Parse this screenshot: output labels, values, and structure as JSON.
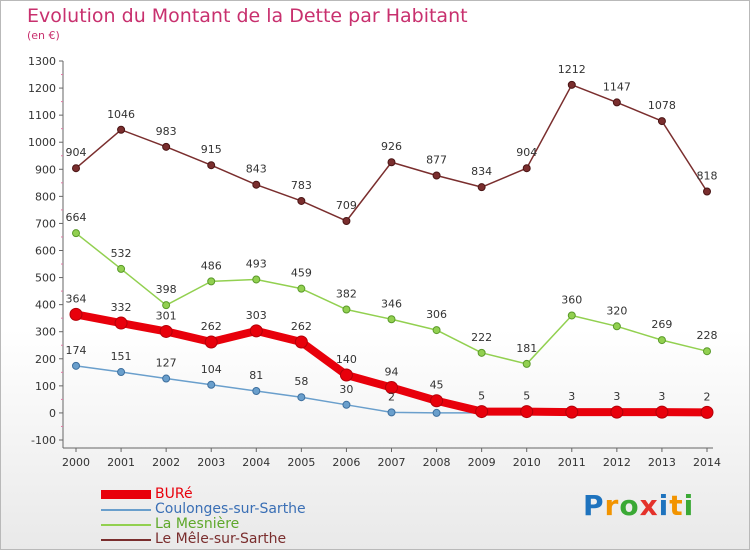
{
  "title": "Evolution du Montant de la Dette par Habitant",
  "subtitle": "(en €)",
  "logo": {
    "letters": [
      "P",
      "r",
      "o",
      "x",
      "i",
      "t",
      "i"
    ],
    "colors": [
      "#1e73be",
      "#f29400",
      "#3aa935",
      "#e4322b",
      "#1e73be",
      "#f29400",
      "#3aa935"
    ]
  },
  "chart_data": {
    "type": "line",
    "x": [
      "2000",
      "2001",
      "2002",
      "2003",
      "2004",
      "2005",
      "2006",
      "2007",
      "2008",
      "2009",
      "2010",
      "2011",
      "2012",
      "2013",
      "2014"
    ],
    "ylim": [
      -100,
      1300
    ],
    "yticks": [
      -100,
      0,
      100,
      200,
      300,
      400,
      500,
      600,
      700,
      800,
      900,
      1000,
      1100,
      1200,
      1300
    ],
    "grid": false,
    "legend_position": "bottom-left",
    "series": [
      {
        "name": "BURé",
        "color": "#e8000b",
        "values": [
          364,
          332,
          301,
          262,
          303,
          262,
          140,
          94,
          45,
          5,
          5,
          3,
          3,
          3,
          2
        ]
      },
      {
        "name": "Coulonges-sur-Sarthe",
        "color": "#6a9fcc",
        "values": [
          174,
          151,
          127,
          104,
          81,
          58,
          30,
          2,
          0,
          0,
          0,
          0,
          0,
          0,
          0
        ]
      },
      {
        "name": "La Mesnière",
        "color": "#92d050",
        "values": [
          664,
          532,
          398,
          486,
          493,
          459,
          382,
          346,
          306,
          222,
          181,
          360,
          320,
          269,
          228
        ]
      },
      {
        "name": "Le Mêle-sur-Sarthe",
        "color": "#7a2e2e",
        "values": [
          904,
          1046,
          983,
          915,
          843,
          783,
          709,
          926,
          877,
          834,
          904,
          1212,
          1147,
          1078,
          818
        ]
      }
    ]
  }
}
